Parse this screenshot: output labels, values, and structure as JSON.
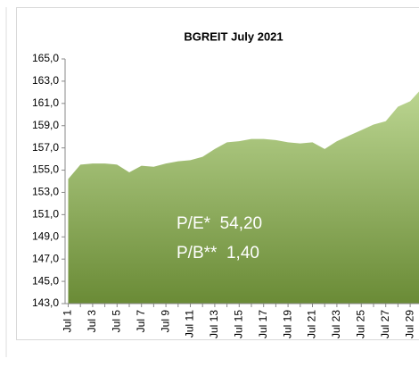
{
  "chart_data": {
    "type": "area",
    "title": "BGREIT July 2021",
    "categories": [
      "Jul 1",
      null,
      "Jul 3",
      null,
      "Jul 5",
      null,
      "Jul 7",
      null,
      "Jul 9",
      null,
      "Jul 11",
      null,
      "Jul 13",
      null,
      "Jul 15",
      null,
      "Jul 17",
      null,
      "Jul 19",
      null,
      "Jul 21",
      null,
      "Jul 23",
      null,
      "Jul 25",
      null,
      "Jul 27",
      null,
      "Jul 29",
      null
    ],
    "values": [
      154.2,
      155.5,
      155.6,
      155.6,
      155.5,
      154.8,
      155.4,
      155.3,
      155.6,
      155.8,
      155.9,
      156.2,
      156.9,
      157.5,
      157.6,
      157.8,
      157.8,
      157.7,
      157.5,
      157.4,
      157.5,
      156.9,
      157.6,
      158.1,
      158.6,
      159.1,
      159.4,
      160.7,
      161.2,
      162.4
    ],
    "gradient": [
      "#bcd692",
      "#6a8b36"
    ],
    "ylim": [
      143,
      165
    ],
    "yticks": [
      {
        "value": 143,
        "label": "143,0"
      },
      {
        "value": 145,
        "label": "145,0"
      },
      {
        "value": 147,
        "label": "147,0"
      },
      {
        "value": 149,
        "label": "149,0"
      },
      {
        "value": 151,
        "label": "151,0"
      },
      {
        "value": 153,
        "label": "153,0"
      },
      {
        "value": 155,
        "label": "155,0"
      },
      {
        "value": 157,
        "label": "157,0"
      },
      {
        "value": 159,
        "label": "159,0"
      },
      {
        "value": 161,
        "label": "161,0"
      },
      {
        "value": 163,
        "label": "163,0"
      },
      {
        "value": 165,
        "label": "165,0"
      }
    ],
    "annotations": [
      "P/E*  54,20",
      "P/B**  1,40"
    ]
  }
}
